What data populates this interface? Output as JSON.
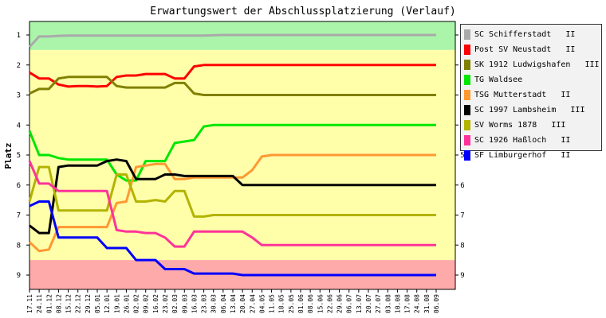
{
  "chart_data": {
    "type": "line",
    "title": "Erwartungswert der Abschlussplatzierung (Verlauf)",
    "ylabel": "Platz",
    "xlabel": "",
    "ylim": [
      1,
      9
    ],
    "y_reversed": true,
    "yticks": [
      "1",
      "2",
      "3",
      "4",
      "5",
      "6",
      "7",
      "8",
      "9"
    ],
    "categories": [
      "17.11",
      "24.11",
      "01.12",
      "08.12",
      "15.12",
      "22.12",
      "29.12",
      "05.01",
      "12.01",
      "19.01",
      "26.01",
      "02.02",
      "09.02",
      "16.02",
      "23.02",
      "02.03",
      "09.03",
      "16.03",
      "23.03",
      "30.03",
      "06.04",
      "13.04",
      "20.04",
      "27.04",
      "04.05",
      "11.05",
      "18.05",
      "25.05",
      "01.06",
      "08.06",
      "15.06",
      "22.06",
      "29.06",
      "06.07",
      "13.07",
      "20.07",
      "27.07",
      "03.08",
      "10.08",
      "17.08",
      "24.08",
      "31.08",
      "06.09"
    ],
    "background_bands": [
      {
        "from": 0.5,
        "to": 1.5,
        "color": "#aaf5aa"
      },
      {
        "from": 1.5,
        "to": 8.5,
        "color": "#ffffaa"
      },
      {
        "from": 8.5,
        "to": 9.5,
        "color": "#ffaaaa"
      }
    ],
    "series": [
      {
        "name": "SC Schifferstadt   II",
        "color": "#aaaaaa",
        "values": [
          1.4,
          1.05,
          1.05,
          1.03,
          1.02,
          1.02,
          1.02,
          1.02,
          1.02,
          1.02,
          1.02,
          1.02,
          1.02,
          1.02,
          1.02,
          1.02,
          1.02,
          1.02,
          1.02,
          1.01,
          1.0,
          1.0,
          1.0,
          1.0,
          1.0,
          1.0,
          1.0,
          1.0,
          1.0,
          1.0,
          1.0,
          1.0,
          1.0,
          1.0,
          1.0,
          1.0,
          1.0,
          1.0,
          1.0,
          1.0,
          1.0,
          1.0,
          1.0
        ]
      },
      {
        "name": "Post SV Neustadt   II",
        "color": "#ff0000",
        "values": [
          2.25,
          2.45,
          2.45,
          2.65,
          2.72,
          2.7,
          2.7,
          2.72,
          2.7,
          2.4,
          2.35,
          2.35,
          2.3,
          2.3,
          2.3,
          2.45,
          2.45,
          2.05,
          2.0,
          2.0,
          2.0,
          2.0,
          2.0,
          2.0,
          2.0,
          2.0,
          2.0,
          2.0,
          2.0,
          2.0,
          2.0,
          2.0,
          2.0,
          2.0,
          2.0,
          2.0,
          2.0,
          2.0,
          2.0,
          2.0,
          2.0,
          2.0,
          2.0
        ]
      },
      {
        "name": "SK 1912 Ludwigshafen   III",
        "color": "#808000",
        "values": [
          2.95,
          2.8,
          2.8,
          2.45,
          2.4,
          2.4,
          2.4,
          2.4,
          2.4,
          2.7,
          2.75,
          2.75,
          2.75,
          2.75,
          2.75,
          2.6,
          2.6,
          2.95,
          3.0,
          3.0,
          3.0,
          3.0,
          3.0,
          3.0,
          3.0,
          3.0,
          3.0,
          3.0,
          3.0,
          3.0,
          3.0,
          3.0,
          3.0,
          3.0,
          3.0,
          3.0,
          3.0,
          3.0,
          3.0,
          3.0,
          3.0,
          3.0,
          3.0
        ]
      },
      {
        "name": "TG Waldsee",
        "color": "#00e600",
        "values": [
          4.2,
          5.0,
          5.0,
          5.1,
          5.15,
          5.15,
          5.15,
          5.15,
          5.15,
          5.65,
          5.85,
          5.85,
          5.2,
          5.2,
          5.2,
          4.6,
          4.55,
          4.5,
          4.05,
          4.0,
          4.0,
          4.0,
          4.0,
          4.0,
          4.0,
          4.0,
          4.0,
          4.0,
          4.0,
          4.0,
          4.0,
          4.0,
          4.0,
          4.0,
          4.0,
          4.0,
          4.0,
          4.0,
          4.0,
          4.0,
          4.0,
          4.0,
          4.0
        ]
      },
      {
        "name": "TSG Mutterstadt   II",
        "color": "#ff9933",
        "values": [
          7.9,
          8.2,
          8.15,
          7.4,
          7.4,
          7.4,
          7.4,
          7.4,
          7.4,
          6.6,
          6.55,
          5.4,
          5.35,
          5.3,
          5.3,
          5.8,
          5.8,
          5.75,
          5.75,
          5.75,
          5.75,
          5.75,
          5.75,
          5.5,
          5.05,
          5.0,
          5.0,
          5.0,
          5.0,
          5.0,
          5.0,
          5.0,
          5.0,
          5.0,
          5.0,
          5.0,
          5.0,
          5.0,
          5.0,
          5.0,
          5.0,
          5.0,
          5.0
        ]
      },
      {
        "name": "SC 1997 Lambsheim   III",
        "color": "#000000",
        "values": [
          7.35,
          7.6,
          7.6,
          5.4,
          5.35,
          5.35,
          5.35,
          5.35,
          5.2,
          5.15,
          5.2,
          5.8,
          5.8,
          5.8,
          5.65,
          5.65,
          5.7,
          5.7,
          5.7,
          5.7,
          5.7,
          5.7,
          6.0,
          6.0,
          6.0,
          6.0,
          6.0,
          6.0,
          6.0,
          6.0,
          6.0,
          6.0,
          6.0,
          6.0,
          6.0,
          6.0,
          6.0,
          6.0,
          6.0,
          6.0,
          6.0,
          6.0,
          6.0
        ]
      },
      {
        "name": "SV Worms 1878   III",
        "color": "#b3b300",
        "values": [
          6.55,
          5.4,
          5.4,
          6.85,
          6.85,
          6.85,
          6.85,
          6.85,
          6.85,
          5.65,
          5.65,
          6.55,
          6.55,
          6.5,
          6.55,
          6.2,
          6.2,
          7.05,
          7.05,
          7.0,
          7.0,
          7.0,
          7.0,
          7.0,
          7.0,
          7.0,
          7.0,
          7.0,
          7.0,
          7.0,
          7.0,
          7.0,
          7.0,
          7.0,
          7.0,
          7.0,
          7.0,
          7.0,
          7.0,
          7.0,
          7.0,
          7.0,
          7.0
        ]
      },
      {
        "name": "SC 1926 Haßloch   II",
        "color": "#ff3399",
        "values": [
          5.2,
          5.95,
          5.95,
          6.2,
          6.2,
          6.2,
          6.2,
          6.2,
          6.2,
          7.5,
          7.55,
          7.55,
          7.6,
          7.6,
          7.75,
          8.05,
          8.05,
          7.55,
          7.55,
          7.55,
          7.55,
          7.55,
          7.55,
          7.75,
          8.0,
          8.0,
          8.0,
          8.0,
          8.0,
          8.0,
          8.0,
          8.0,
          8.0,
          8.0,
          8.0,
          8.0,
          8.0,
          8.0,
          8.0,
          8.0,
          8.0,
          8.0,
          8.0
        ]
      },
      {
        "name": "SF Limburgerhof   II",
        "color": "#0000ff",
        "values": [
          6.7,
          6.55,
          6.55,
          7.75,
          7.75,
          7.75,
          7.75,
          7.75,
          8.1,
          8.1,
          8.1,
          8.5,
          8.5,
          8.5,
          8.8,
          8.8,
          8.8,
          8.95,
          8.95,
          8.95,
          8.95,
          8.95,
          9.0,
          9.0,
          9.0,
          9.0,
          9.0,
          9.0,
          9.0,
          9.0,
          9.0,
          9.0,
          9.0,
          9.0,
          9.0,
          9.0,
          9.0,
          9.0,
          9.0,
          9.0,
          9.0,
          9.0,
          9.0
        ]
      }
    ],
    "grid": false,
    "legend_position": "right"
  }
}
